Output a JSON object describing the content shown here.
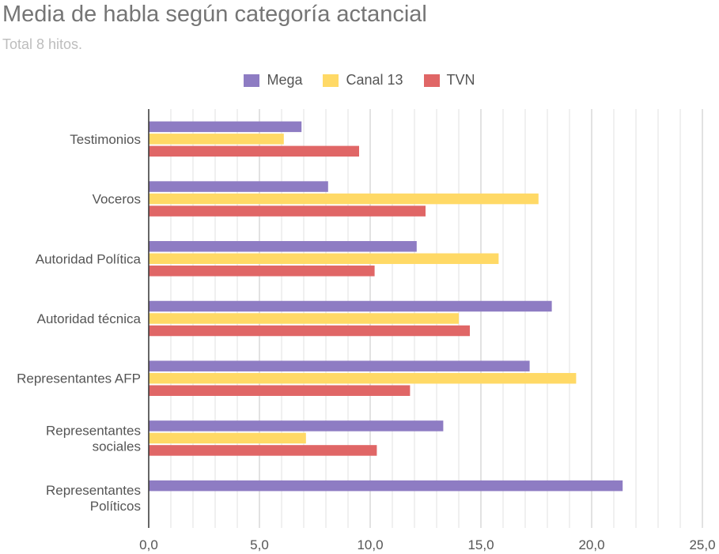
{
  "chart_data": {
    "type": "bar",
    "orientation": "horizontal",
    "title": "Media de habla según categoría actancial",
    "subtitle": "Total 8 hitos.",
    "categories": [
      [
        "Testimonios"
      ],
      [
        "Voceros"
      ],
      [
        "Autoridad Política"
      ],
      [
        "Autoridad técnica"
      ],
      [
        "Representantes AFP"
      ],
      [
        "Representantes",
        "sociales"
      ],
      [
        "Representantes",
        "Políticos"
      ]
    ],
    "series": [
      {
        "name": "Mega",
        "color": "#8e7cc3",
        "values": [
          6.9,
          8.1,
          12.1,
          18.2,
          17.2,
          13.3,
          21.4
        ]
      },
      {
        "name": "Canal 13",
        "color": "#ffd966",
        "values": [
          6.1,
          17.6,
          15.8,
          14.0,
          19.3,
          7.1,
          null
        ]
      },
      {
        "name": "TVN",
        "color": "#e06666",
        "values": [
          9.5,
          12.5,
          10.2,
          14.5,
          11.8,
          10.3,
          null
        ]
      }
    ],
    "xlim": [
      0,
      25
    ],
    "xticks": [
      0,
      5,
      10,
      15,
      20,
      25
    ],
    "xtick_labels": [
      "0,0",
      "5,0",
      "10,0",
      "15,0",
      "20,0",
      "25,0"
    ],
    "minor_gridlines_per_major": 5,
    "legend_position": "top-center",
    "grid": true
  }
}
